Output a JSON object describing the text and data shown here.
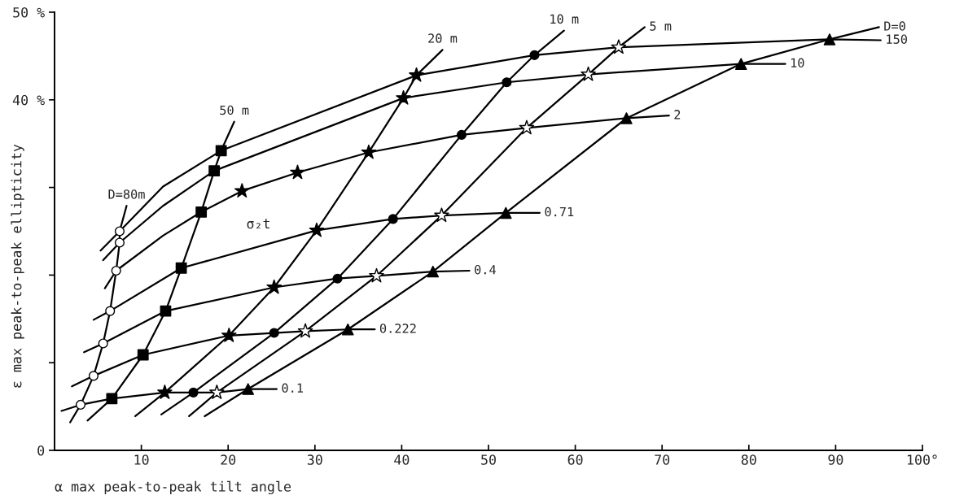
{
  "chart_data": {
    "type": "line",
    "xlabel": "α max peak-to-peak tilt angle",
    "ylabel": "ε max peak-to-peak ellipticity",
    "xlim": [
      0,
      100
    ],
    "ylim": [
      0,
      50
    ],
    "xticks": [
      10,
      20,
      30,
      40,
      50,
      60,
      70,
      80,
      90,
      {
        "value": 100,
        "label": "100°"
      }
    ],
    "yticks": [
      {
        "value": 0,
        "label": "0"
      },
      {
        "value": 10,
        "label": null
      },
      {
        "value": 20,
        "label": null
      },
      {
        "value": 30,
        "label": null
      },
      {
        "value": 40,
        "label": "40 %"
      },
      {
        "value": 50,
        "label": "50 %"
      }
    ],
    "grid": false,
    "legend": false,
    "line_style": "solid",
    "annotations": [
      "σ₂t"
    ],
    "series": [
      {
        "name": "0.1",
        "color": "#000000",
        "x": [
          0.8,
          3.0,
          6.6,
          12.7,
          16.0,
          18.7,
          22.3,
          25.6
        ],
        "values": [
          4.5,
          5.2,
          5.9,
          6.6,
          6.6,
          6.6,
          7.0,
          7.0
        ]
      },
      {
        "name": "0.222",
        "color": "#000000",
        "x": [
          2.0,
          4.5,
          10.2,
          20.1,
          25.3,
          28.9,
          33.8,
          36.9
        ],
        "values": [
          7.3,
          8.5,
          10.9,
          13.1,
          13.4,
          13.6,
          13.8,
          13.8
        ]
      },
      {
        "name": "0.4",
        "color": "#000000",
        "x": [
          3.4,
          5.6,
          12.8,
          25.3,
          32.6,
          37.1,
          43.6,
          47.8
        ],
        "values": [
          11.2,
          12.2,
          15.9,
          18.6,
          19.6,
          19.9,
          20.4,
          20.5
        ]
      },
      {
        "name": "0.71",
        "color": "#000000",
        "x": [
          4.5,
          6.4,
          14.6,
          30.2,
          39.0,
          44.6,
          52.0,
          55.9
        ],
        "values": [
          14.9,
          15.9,
          20.8,
          25.1,
          26.4,
          26.8,
          27.1,
          27.1
        ]
      },
      {
        "name": "2",
        "color": "#000000",
        "x": [
          5.8,
          7.1,
          12.5,
          16.9,
          21.6,
          28.0,
          36.2,
          46.9,
          54.4,
          65.9,
          70.8
        ],
        "values": [
          18.5,
          20.5,
          24.5,
          27.2,
          29.6,
          31.7,
          34.0,
          36.0,
          36.8,
          37.9,
          38.2
        ]
      },
      {
        "name": "10",
        "color": "#000000",
        "x": [
          5.6,
          7.5,
          12.5,
          18.4,
          40.2,
          52.1,
          61.5,
          79.1,
          84.2
        ],
        "values": [
          21.7,
          23.7,
          27.9,
          31.9,
          40.2,
          42.0,
          42.9,
          44.1,
          44.1
        ]
      },
      {
        "name": "150",
        "color": "#000000",
        "x": [
          5.3,
          7.5,
          12.5,
          19.2,
          41.7,
          55.3,
          65.0,
          89.3,
          95.2
        ],
        "values": [
          22.8,
          25.0,
          30.1,
          34.2,
          42.8,
          45.1,
          46.0,
          46.9,
          46.8
        ]
      },
      {
        "name": "D=80m",
        "color": "#000000",
        "x": [
          1.8,
          3.0,
          4.5,
          5.6,
          6.4,
          7.1,
          7.5,
          7.5,
          8.3
        ],
        "values": [
          3.2,
          5.2,
          8.5,
          12.2,
          15.9,
          20.5,
          23.7,
          25.0,
          27.9
        ]
      },
      {
        "name": "50 m",
        "color": "#000000",
        "x": [
          3.8,
          6.6,
          10.2,
          12.8,
          14.6,
          16.9,
          18.4,
          19.2,
          20.7
        ],
        "values": [
          3.4,
          5.9,
          10.9,
          15.9,
          20.8,
          27.2,
          31.9,
          34.2,
          37.5
        ]
      },
      {
        "name": "20 m",
        "color": "#000000",
        "x": [
          9.3,
          12.7,
          20.1,
          25.3,
          30.2,
          36.2,
          40.2,
          41.7,
          44.7
        ],
        "values": [
          3.9,
          6.6,
          13.1,
          18.6,
          25.1,
          34.0,
          40.2,
          42.8,
          45.7
        ]
      },
      {
        "name": "10 m",
        "color": "#000000",
        "x": [
          12.3,
          16.0,
          25.3,
          32.6,
          39.0,
          46.9,
          52.1,
          55.3,
          58.7
        ],
        "values": [
          4.1,
          6.6,
          13.4,
          19.6,
          26.4,
          36.0,
          42.0,
          45.1,
          47.9
        ]
      },
      {
        "name": "5 m",
        "color": "#000000",
        "x": [
          15.5,
          18.7,
          28.9,
          37.1,
          44.6,
          54.4,
          61.5,
          65.0,
          68.0
        ],
        "values": [
          3.9,
          6.6,
          13.6,
          19.9,
          26.8,
          36.8,
          42.9,
          46.0,
          48.3
        ]
      },
      {
        "name": "D=0",
        "color": "#000000",
        "x": [
          17.3,
          22.3,
          33.8,
          43.6,
          52.0,
          65.9,
          79.1,
          89.3,
          95.0
        ],
        "values": [
          3.9,
          7.0,
          13.8,
          20.4,
          27.1,
          37.9,
          44.1,
          46.9,
          48.3
        ]
      },
      {
        "type": "scatter",
        "marker": "circle",
        "color": "#ffffff",
        "x": [
          3.0,
          4.5,
          5.6,
          6.4,
          7.1,
          7.5,
          7.5
        ],
        "values": [
          5.2,
          8.5,
          12.2,
          15.9,
          20.5,
          23.7,
          25.0
        ]
      },
      {
        "type": "scatter",
        "marker": "square",
        "color": "#000000",
        "x": [
          6.6,
          10.2,
          12.8,
          14.6,
          16.9,
          18.4,
          19.2
        ],
        "values": [
          5.9,
          10.9,
          15.9,
          20.8,
          27.2,
          31.9,
          34.2
        ]
      },
      {
        "type": "scatter",
        "marker": "star",
        "color": "#000000",
        "x": [
          12.7,
          20.1,
          25.3,
          30.2,
          36.2,
          40.2,
          41.7,
          21.6,
          28.0
        ],
        "values": [
          6.6,
          13.1,
          18.6,
          25.1,
          34.0,
          40.2,
          42.8,
          29.6,
          31.7
        ]
      },
      {
        "type": "scatter",
        "marker": "circle",
        "color": "#000000",
        "x": [
          16.0,
          25.3,
          32.6,
          39.0,
          46.9,
          52.1,
          55.3
        ],
        "values": [
          6.6,
          13.4,
          19.6,
          26.4,
          36.0,
          42.0,
          45.1
        ]
      },
      {
        "type": "scatter",
        "marker": "star",
        "color": "#ffffff",
        "x": [
          18.7,
          28.9,
          37.1,
          44.6,
          54.4,
          61.5,
          65.0
        ],
        "values": [
          6.6,
          13.6,
          19.9,
          26.8,
          36.8,
          42.9,
          46.0
        ]
      },
      {
        "type": "scatter",
        "marker": "triangle",
        "color": "#000000",
        "x": [
          22.3,
          33.8,
          43.6,
          52.0,
          65.9,
          79.1,
          89.3
        ],
        "values": [
          7.0,
          13.8,
          20.4,
          27.1,
          37.9,
          44.1,
          46.9
        ]
      }
    ]
  }
}
